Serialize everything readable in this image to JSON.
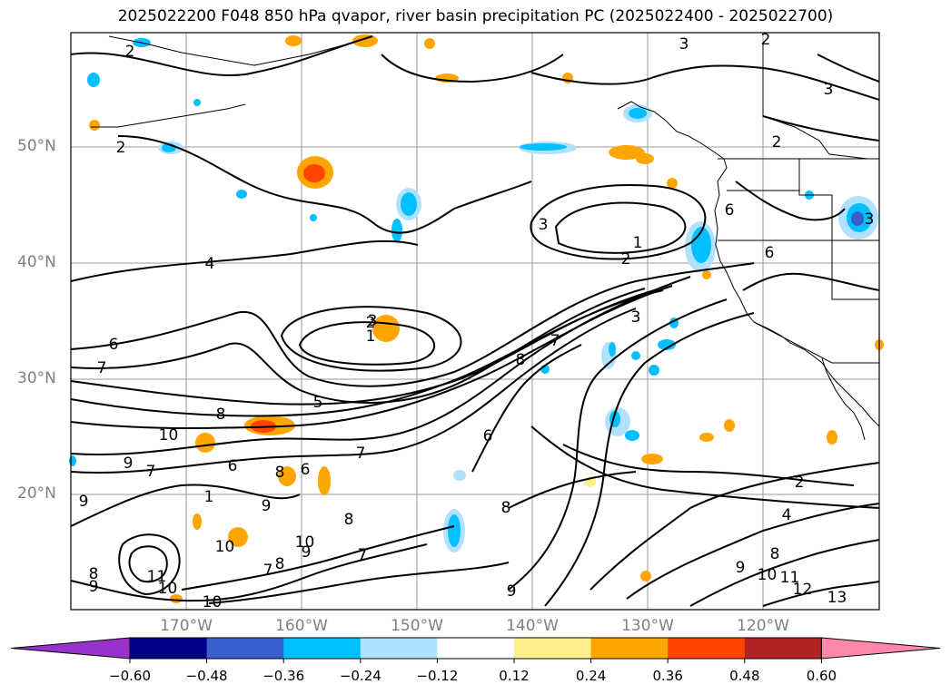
{
  "title": "2025022200 F048 850 hPa qvapor, river basin precipitation PC (2025022400 - 2025022700)",
  "map": {
    "lat_labels": [
      "50°N",
      "40°N",
      "30°N",
      "20°N"
    ],
    "lon_labels": [
      "170°W",
      "160°W",
      "150°W",
      "140°W",
      "130°W",
      "120°W"
    ],
    "contour_labels": [
      "2",
      "2",
      "3",
      "3",
      "2",
      "2",
      "3",
      "4",
      "6",
      "3",
      "2",
      "1",
      "3",
      "2",
      "1",
      "6",
      "7",
      "8",
      "5",
      "8",
      "7",
      "6",
      "10",
      "9",
      "7",
      "6",
      "7",
      "8",
      "6",
      "1",
      "9",
      "9",
      "8",
      "10",
      "10",
      "9",
      "7",
      "8",
      "11",
      "10",
      "10",
      "8",
      "9",
      "7",
      "8",
      "9",
      "2",
      "4",
      "8",
      "9",
      "10",
      "11",
      "12",
      "13",
      "6",
      "3"
    ]
  },
  "colorbar": {
    "ticks": [
      "−0.60",
      "−0.48",
      "−0.36",
      "−0.24",
      "−0.12",
      "0.12",
      "0.24",
      "0.36",
      "0.48",
      "0.60"
    ],
    "colors": [
      "#9932cc",
      "#00008b",
      "#3a5fcd",
      "#00bfff",
      "#b0e2ff",
      "#ffffff",
      "#fff08a",
      "#ffa500",
      "#ff4500",
      "#b22222",
      "#ff88aa"
    ]
  }
}
